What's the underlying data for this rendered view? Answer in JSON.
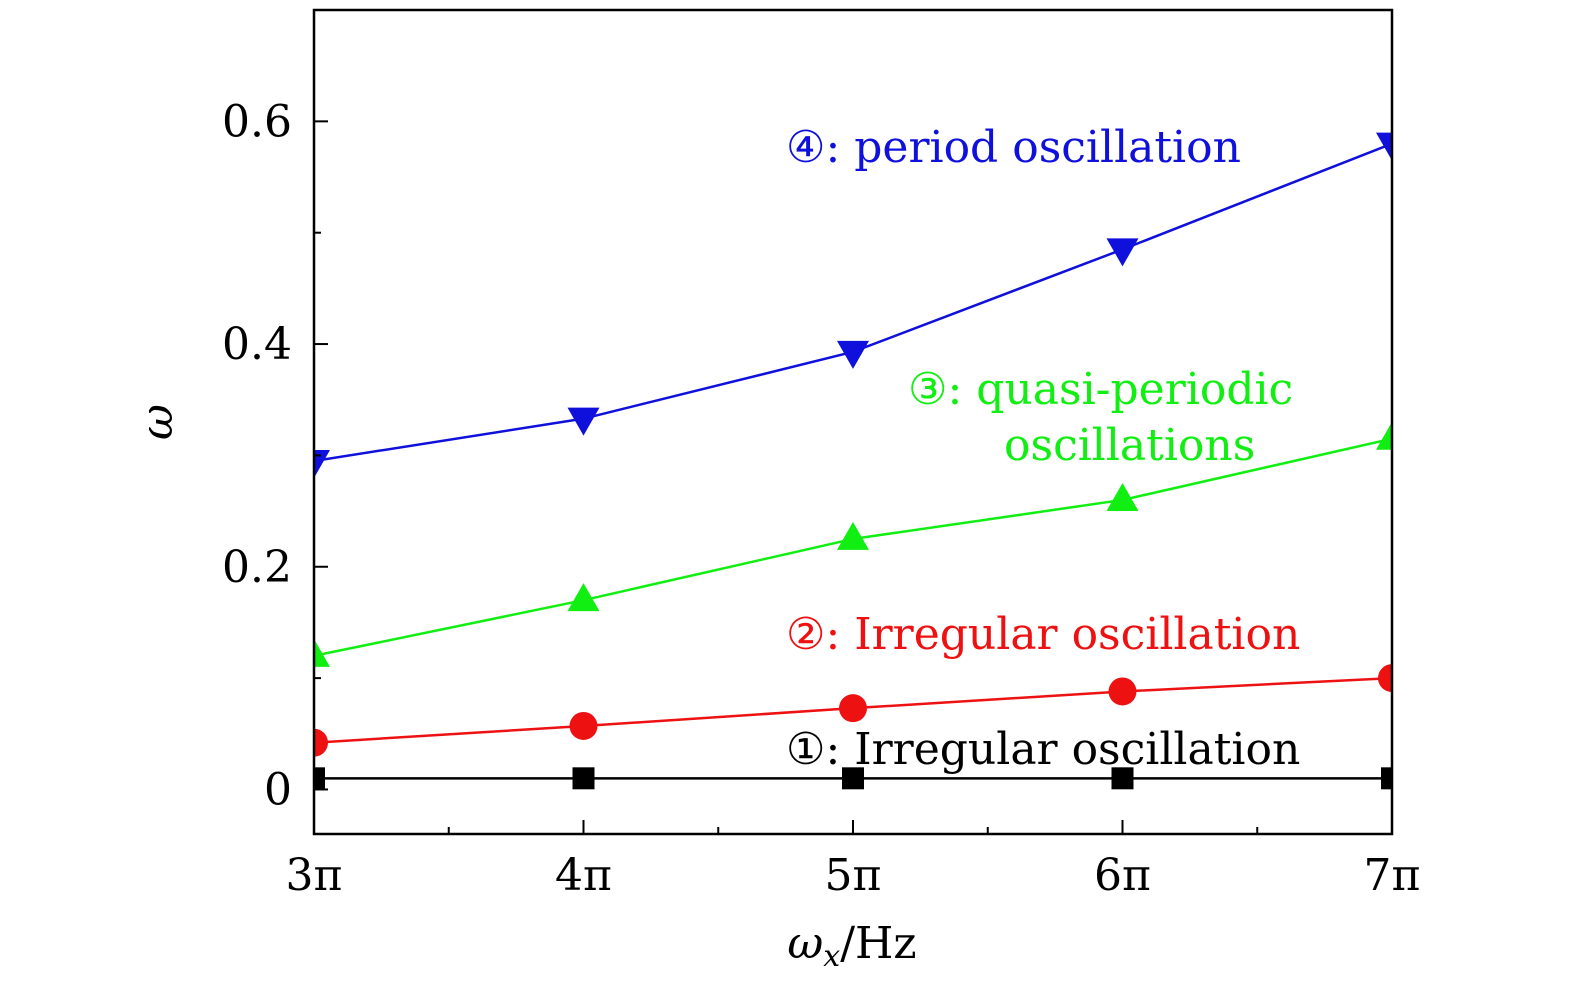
{
  "chart_data": {
    "type": "line",
    "categories": [
      "3π",
      "4π",
      "5π",
      "6π",
      "7π"
    ],
    "x": [
      3,
      4,
      5,
      6,
      7
    ],
    "xlim": [
      3,
      7
    ],
    "ylim": [
      -0.04,
      0.7
    ],
    "y_ticks": [
      "0",
      "0.2",
      "0.4",
      "0.6"
    ],
    "y_tick_values": [
      0,
      0.2,
      0.4,
      0.6
    ],
    "y_minor_tick_values": [
      0.1,
      0.3,
      0.5
    ],
    "xlabel": "ωx/Hz",
    "xlabel_main": "ω",
    "xlabel_sub": "x",
    "xlabel_unit": "/Hz",
    "ylabel": "ω",
    "grid": false,
    "series": [
      {
        "marker": "square",
        "color": "#000000",
        "values": [
          0.01,
          0.01,
          0.01,
          0.01,
          0.01
        ]
      },
      {
        "marker": "circle",
        "color": "#ee1111",
        "values": [
          0.042,
          0.057,
          0.073,
          0.088,
          0.1
        ]
      },
      {
        "marker": "triangle-up",
        "color": "#11ee11",
        "values": [
          0.12,
          0.17,
          0.225,
          0.26,
          0.315
        ]
      },
      {
        "marker": "triangle-down",
        "color": "#1010dd",
        "values": [
          0.295,
          0.333,
          0.393,
          0.485,
          0.58
        ]
      }
    ],
    "annotations": [
      {
        "text": "①: Irregular oscillation",
        "color": "#000000"
      },
      {
        "text": "②: Irregular oscillation",
        "color": "#ee1111"
      },
      {
        "text": "③: quasi-periodic",
        "color": "#11ee11"
      },
      {
        "text": "oscillations",
        "color": "#11ee11"
      },
      {
        "text": "④: period oscillation",
        "color": "#1010dd"
      }
    ]
  }
}
